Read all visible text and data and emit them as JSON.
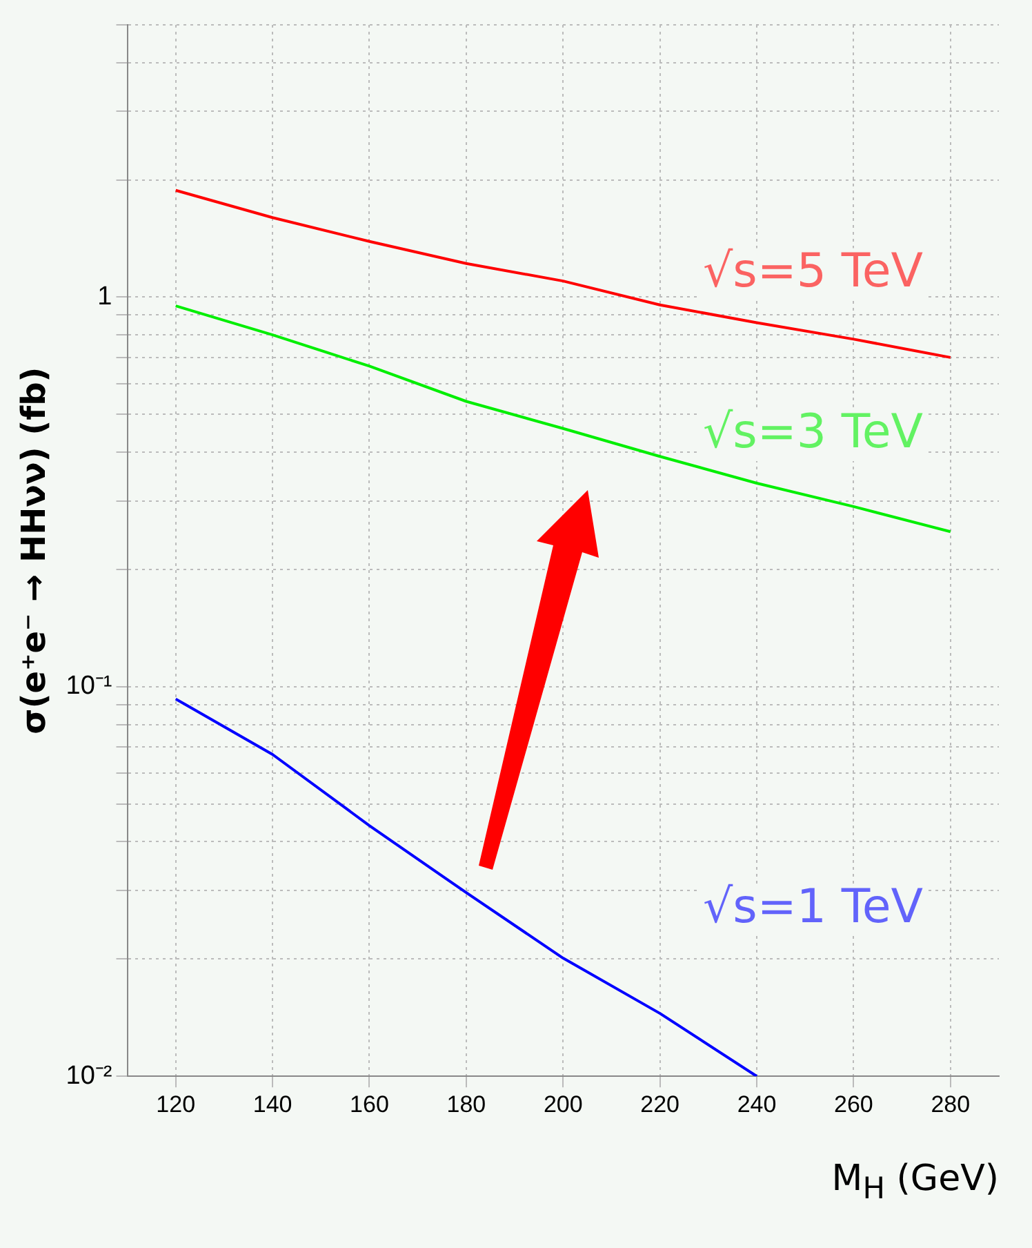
{
  "chart_data": {
    "type": "line",
    "xlabel": "M$_{H}$ (GeV)",
    "ylabel": "σ(e⁺e⁻ → HHνν) (fb)",
    "x": [
      120,
      140,
      160,
      180,
      200,
      220,
      240,
      260,
      280
    ],
    "series": [
      {
        "name": "√s=5 TeV",
        "color": "#ff0000",
        "values": [
          1.88,
          1.6,
          1.39,
          1.22,
          1.1,
          0.955,
          0.86,
          0.78,
          0.7
        ]
      },
      {
        "name": "√s=3 TeV",
        "color": "#00ee00",
        "values": [
          0.95,
          0.8,
          0.665,
          0.54,
          0.46,
          0.39,
          0.333,
          0.29,
          0.25
        ]
      },
      {
        "name": "√s=1 TeV",
        "color": "#0000ff",
        "values": [
          0.093,
          0.067,
          0.044,
          0.0296,
          0.0201,
          0.0145,
          0.01,
          null,
          null
        ]
      }
    ],
    "log": "y",
    "xlim": [
      110,
      290
    ],
    "xticks": [
      120,
      140,
      160,
      180,
      200,
      220,
      240,
      260,
      280
    ],
    "ylim": [
      0.01,
      5
    ],
    "yticks": [
      {
        "value": 0.01,
        "label": "10⁻²"
      },
      {
        "value": 0.02,
        "label": null
      },
      {
        "value": 0.03,
        "label": null
      },
      {
        "value": 0.04,
        "label": null
      },
      {
        "value": 0.05,
        "label": null
      },
      {
        "value": 0.06,
        "label": null
      },
      {
        "value": 0.07,
        "label": null
      },
      {
        "value": 0.08,
        "label": null
      },
      {
        "value": 0.09,
        "label": null
      },
      {
        "value": 0.1,
        "label": "10⁻¹"
      },
      {
        "value": 0.2,
        "label": null
      },
      {
        "value": 0.3,
        "label": null
      },
      {
        "value": 0.4,
        "label": null
      },
      {
        "value": 0.5,
        "label": null
      },
      {
        "value": 0.6,
        "label": null
      },
      {
        "value": 0.7,
        "label": null
      },
      {
        "value": 0.8,
        "label": null
      },
      {
        "value": 0.9,
        "label": null
      },
      {
        "value": 1,
        "label": "1"
      },
      {
        "value": 2,
        "label": null
      },
      {
        "value": 3,
        "label": null
      },
      {
        "value": 4,
        "label": null
      },
      {
        "value": 5,
        "label": null
      }
    ],
    "grid": true,
    "legend": false,
    "marker": "none",
    "line_style": "solid"
  }
}
